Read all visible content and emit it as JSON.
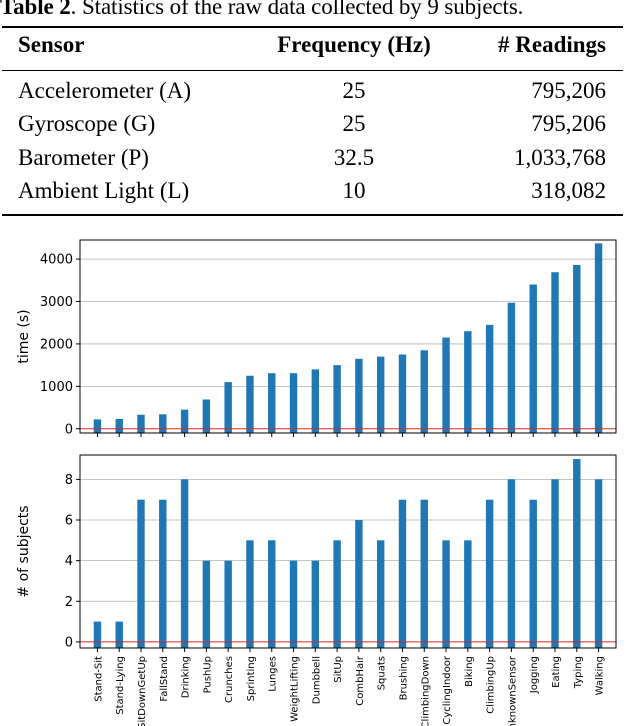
{
  "caption": {
    "label": "Table 2",
    "text": ". Statistics of the raw data collected by 9 subjects."
  },
  "table": {
    "headers": [
      "Sensor",
      "Frequency (Hz)",
      "# Readings"
    ],
    "rows": [
      [
        "Accelerometer (A)",
        "25",
        "795,206"
      ],
      [
        "Gyroscope (G)",
        "25",
        "795,206"
      ],
      [
        "Barometer (P)",
        "32.5",
        "1,033,768"
      ],
      [
        "Ambient Light (L)",
        "10",
        "318,082"
      ]
    ]
  },
  "chart_data": [
    {
      "type": "bar",
      "ylabel": "time (s)",
      "xlabel": "",
      "ylim": [
        -100,
        4450
      ],
      "yticks": [
        0,
        1000,
        2000,
        3000,
        4000
      ],
      "grid": "horizontal",
      "color": "#1f77b4",
      "baseline_color": "#d62728",
      "categories": [
        "Stand-Sit",
        "Stand-Lying",
        "SitDownGetUp",
        "FallStand",
        "Drinking",
        "PushUp",
        "Crunches",
        "Sprinting",
        "Lunges",
        "WeightLifting",
        "Dumbbell",
        "SitUp",
        "CombHair",
        "Squats",
        "Brushing",
        "ClimbingDown",
        "CyclingIndoor",
        "Biking",
        "ClimbingUp",
        "UnknownSensor",
        "Jogging",
        "Eating",
        "Typing",
        "Walking"
      ],
      "values": [
        220,
        230,
        330,
        340,
        450,
        690,
        1100,
        1250,
        1310,
        1310,
        1400,
        1500,
        1650,
        1700,
        1750,
        1850,
        2150,
        2300,
        2450,
        2970,
        3400,
        3690,
        3860,
        4370
      ]
    },
    {
      "type": "bar",
      "ylabel": "# of subjects",
      "xlabel": "",
      "ylim": [
        -0.3,
        9.2
      ],
      "yticks": [
        0,
        2,
        4,
        6,
        8
      ],
      "grid": "horizontal",
      "color": "#1f77b4",
      "baseline_color": "#d62728",
      "categories": [
        "Stand-Sit",
        "Stand-Lying",
        "SitDownGetUp",
        "FallStand",
        "Drinking",
        "PushUp",
        "Crunches",
        "Sprinting",
        "Lunges",
        "WeightLifting",
        "Dumbbell",
        "SitUp",
        "CombHair",
        "Squats",
        "Brushing",
        "ClimbingDown",
        "CyclingIndoor",
        "Biking",
        "ClimbingUp",
        "UnknownSensor",
        "Jogging",
        "Eating",
        "Typing",
        "Walking"
      ],
      "values": [
        1,
        1,
        7,
        7,
        8,
        4,
        4,
        5,
        5,
        4,
        4,
        5,
        6,
        5,
        7,
        7,
        5,
        5,
        7,
        8,
        7,
        8,
        9,
        8
      ]
    }
  ]
}
